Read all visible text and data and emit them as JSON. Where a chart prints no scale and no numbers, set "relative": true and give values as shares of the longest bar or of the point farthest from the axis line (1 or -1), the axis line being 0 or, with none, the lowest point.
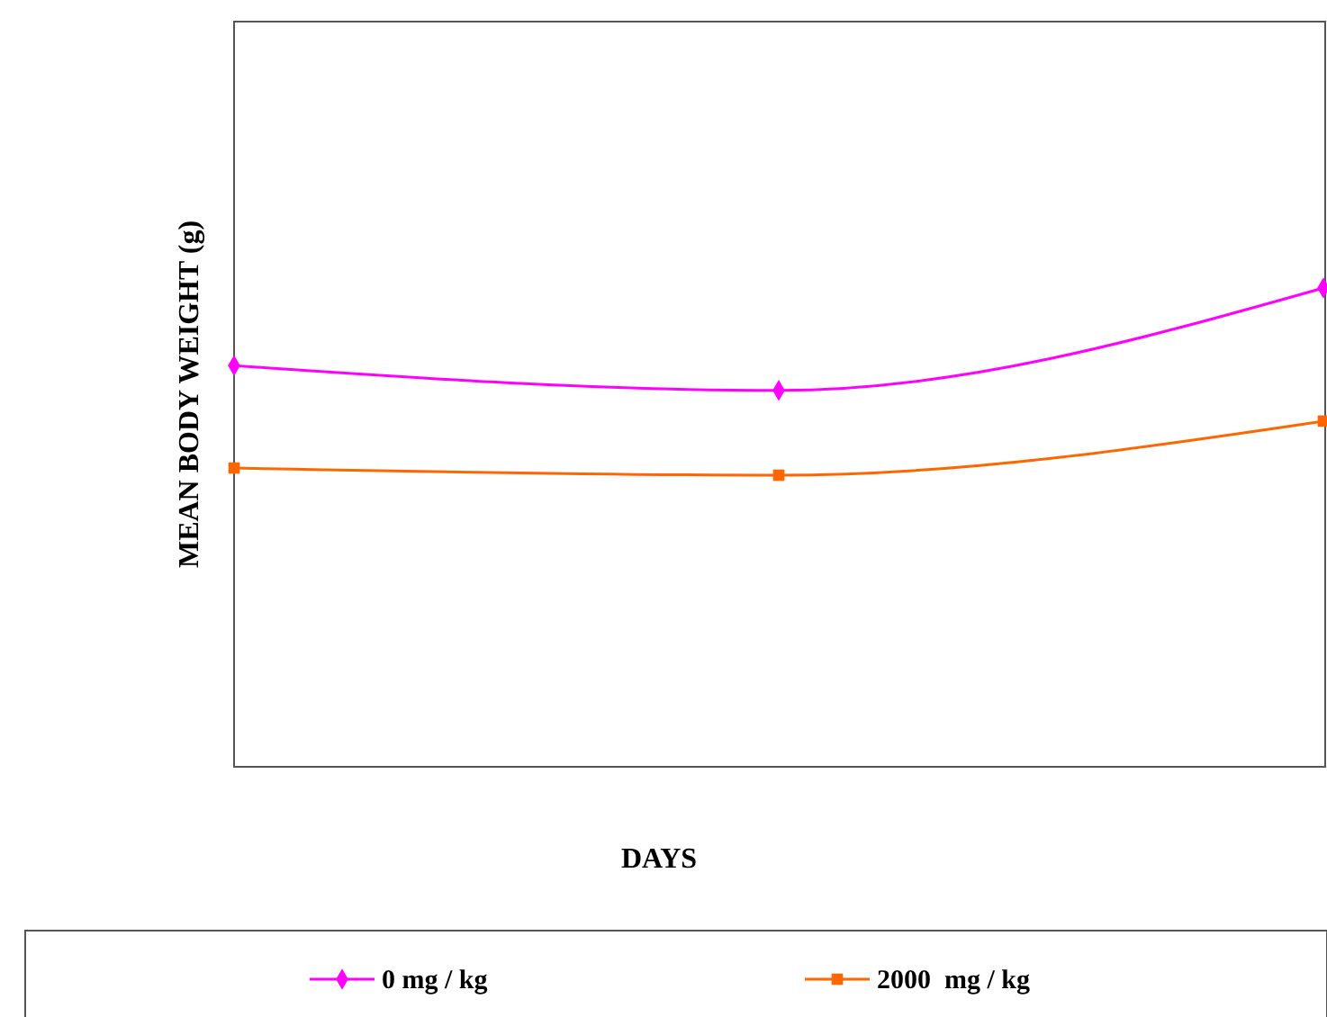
{
  "chart_data": {
    "type": "line",
    "relative": true,
    "xlabel": "DAYS",
    "ylabel": "MEAN BODY WEIGHT (g)",
    "categories": [
      null,
      null,
      null
    ],
    "legend": "bottom",
    "line_style": "solid",
    "series": [
      {
        "name": "0 mg / kg",
        "color": "#ff00ff",
        "marker": "diamond",
        "values": [
          0.838,
          0.786,
          1
        ]
      },
      {
        "name": "2000  mg / kg",
        "color": "#ff6600",
        "marker": "square",
        "values": [
          0.624,
          0.609,
          0.722
        ]
      }
    ]
  }
}
